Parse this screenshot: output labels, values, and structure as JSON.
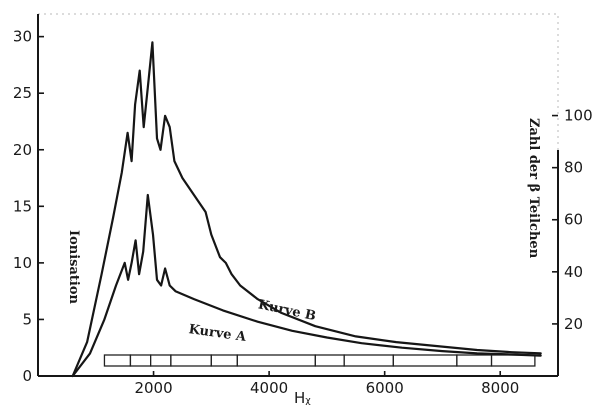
{
  "chart_data": {
    "type": "line",
    "title": "",
    "xlabel": "Hᵪ",
    "ylabel_left": "Ionisation",
    "ylabel_right": "Zahl der β Teilchen",
    "xlim": [
      0,
      9000
    ],
    "ylim_left": [
      0,
      32
    ],
    "ylim_right": [
      0,
      139
    ],
    "x_ticks": [
      2000,
      4000,
      6000,
      8000
    ],
    "y_ticks_left": [
      0,
      5,
      10,
      15,
      20,
      25,
      30
    ],
    "y_ticks_right": [
      20,
      40,
      60,
      80,
      100
    ],
    "grid": false,
    "series": [
      {
        "name": "Kurve B",
        "axis": "left",
        "x": [
          600,
          850,
          1100,
          1300,
          1450,
          1550,
          1620,
          1680,
          1760,
          1830,
          1900,
          1980,
          2060,
          2120,
          2200,
          2280,
          2360,
          2500,
          2700,
          2900,
          3000,
          3150,
          3250,
          3350,
          3500,
          3800,
          4200,
          4800,
          5500,
          6200,
          7000,
          7600,
          8200,
          8700
        ],
        "y": [
          0,
          3,
          9,
          14,
          18,
          21.5,
          19,
          24,
          27,
          22,
          25.5,
          29.5,
          21,
          20,
          23,
          22,
          19,
          17.5,
          16,
          14.5,
          12.5,
          10.5,
          10,
          9,
          8,
          6.8,
          5.6,
          4.4,
          3.5,
          3,
          2.6,
          2.3,
          2.1,
          2.0
        ]
      },
      {
        "name": "Kurve A",
        "axis": "left",
        "x": [
          600,
          900,
          1150,
          1350,
          1500,
          1560,
          1620,
          1690,
          1750,
          1820,
          1900,
          1990,
          2060,
          2130,
          2200,
          2280,
          2380,
          2700,
          3200,
          3800,
          4400,
          5000,
          5600,
          6300,
          7000,
          7600,
          8200,
          8700
        ],
        "y": [
          0,
          2,
          5,
          8,
          10,
          8.5,
          10,
          12,
          9,
          11,
          16,
          12.5,
          8.5,
          8,
          9.5,
          8,
          7.5,
          6.8,
          5.8,
          4.8,
          4.0,
          3.4,
          2.9,
          2.5,
          2.2,
          2.0,
          1.9,
          1.8
        ]
      }
    ],
    "annotations": [
      {
        "text": "Kurve B",
        "x": 3800,
        "y": 6.0,
        "rotate": 12
      },
      {
        "text": "Kurve A",
        "x": 2600,
        "y": 3.8,
        "rotate": 8
      }
    ],
    "scale_strip_ticks": [
      1150,
      1600,
      1950,
      2300,
      3000,
      3450,
      4800,
      5300,
      6150,
      7250,
      7850,
      8600
    ]
  }
}
